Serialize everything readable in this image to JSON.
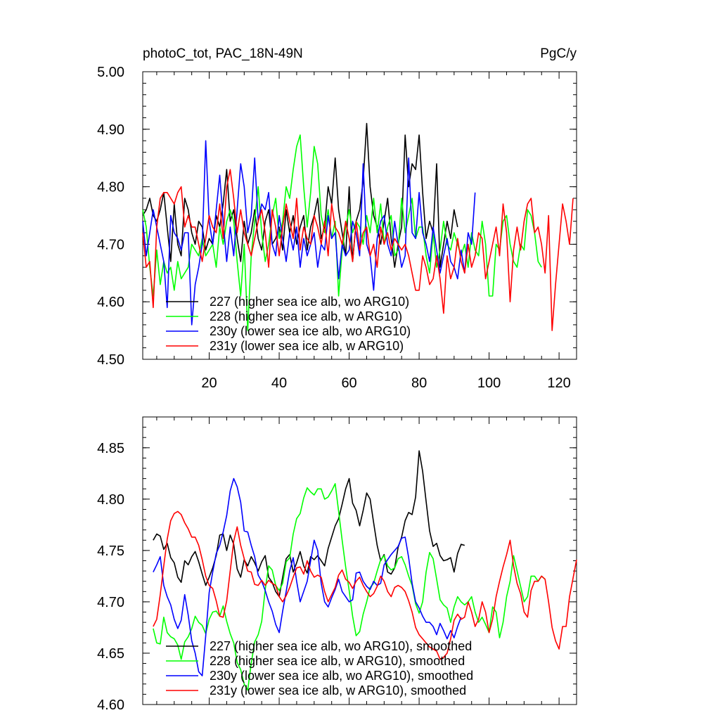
{
  "chart_data": [
    {
      "type": "line",
      "title_left": "photoC_tot, PAC_18N-49N",
      "title_right": "PgC/y",
      "xlabel": "",
      "ylabel": "",
      "xlim": [
        1,
        125
      ],
      "ylim": [
        4.5,
        5.0
      ],
      "xticks": [
        20,
        40,
        60,
        80,
        100,
        120
      ],
      "xtick_labels": [
        "20",
        "40",
        "60",
        "80",
        "100",
        "120"
      ],
      "yticks": [
        4.5,
        4.6,
        4.7,
        4.8,
        4.9,
        5.0
      ],
      "ytick_labels": [
        "4.50",
        "4.60",
        "4.70",
        "4.80",
        "4.90",
        "5.00"
      ],
      "legend_position": "bottom-left",
      "series": [
        {
          "name": "227 (higher sea ice alb, wo ARG10)",
          "color": "#000000",
          "x_start": 1,
          "values": [
            4.75,
            4.76,
            4.78,
            4.75,
            4.74,
            4.76,
            4.79,
            4.73,
            4.67,
            4.77,
            4.7,
            4.68,
            4.78,
            4.76,
            4.72,
            4.7,
            4.74,
            4.73,
            4.69,
            4.71,
            4.7,
            4.75,
            4.73,
            4.77,
            4.83,
            4.74,
            4.76,
            4.71,
            4.67,
            4.74,
            4.7,
            4.72,
            4.76,
            4.71,
            4.69,
            4.74,
            4.76,
            4.7,
            4.71,
            4.73,
            4.69,
            4.76,
            4.72,
            4.75,
            4.7,
            4.73,
            4.75,
            4.69,
            4.73,
            4.75,
            4.78,
            4.71,
            4.73,
            4.8,
            4.77,
            4.85,
            4.76,
            4.72,
            4.68,
            4.8,
            4.67,
            4.74,
            4.76,
            4.81,
            4.91,
            4.8,
            4.75,
            4.73,
            4.7,
            4.74,
            4.78,
            4.71,
            4.66,
            4.7,
            4.73,
            4.89,
            4.8,
            4.84,
            4.83,
            4.89,
            4.79,
            4.71,
            4.74,
            4.72,
            4.84,
            4.66,
            4.7,
            4.74,
            4.71,
            4.76,
            4.73
          ]
        },
        {
          "name": "228 (higher sea ice alb, w ARG10)",
          "color": "#00ff00",
          "x_start": 1,
          "values": [
            4.76,
            4.73,
            4.66,
            4.61,
            4.69,
            4.63,
            4.67,
            4.65,
            4.66,
            4.62,
            4.67,
            4.64,
            4.65,
            4.66,
            4.7,
            4.69,
            4.68,
            4.71,
            4.68,
            4.69,
            4.7,
            4.66,
            4.73,
            4.7,
            4.74,
            4.76,
            4.74,
            4.67,
            4.61,
            4.7,
            4.55,
            4.68,
            4.74,
            4.8,
            4.72,
            4.67,
            4.7,
            4.75,
            4.78,
            4.71,
            4.74,
            4.8,
            4.78,
            4.83,
            4.87,
            4.89,
            4.8,
            4.73,
            4.79,
            4.87,
            4.84,
            4.75,
            4.72,
            4.76,
            4.71,
            4.74,
            4.61,
            4.69,
            4.73,
            4.76,
            4.72,
            4.74,
            4.73,
            4.7,
            4.75,
            4.72,
            4.78,
            4.72,
            4.77,
            4.7,
            4.73,
            4.75,
            4.68,
            4.69,
            4.78,
            4.72,
            4.75,
            4.78,
            4.71,
            4.73,
            4.73,
            4.68,
            4.65,
            4.72,
            4.66,
            4.69,
            4.74,
            4.7,
            4.69,
            4.72,
            4.7,
            4.68,
            4.7,
            4.66,
            4.72,
            4.69,
            4.68,
            4.74,
            4.7,
            4.61,
            4.61,
            4.7,
            4.69,
            4.74,
            4.75,
            4.7,
            4.67,
            4.66,
            4.7,
            4.69,
            4.76,
            4.75,
            4.72,
            4.67,
            4.66
          ]
        },
        {
          "name": "230y (lower sea ice alb, wo ARG10)",
          "color": "#0000ff",
          "x_start": 1,
          "values": [
            4.74,
            4.68,
            4.72,
            4.76,
            4.73,
            4.7,
            4.67,
            4.59,
            4.75,
            4.72,
            4.71,
            4.69,
            4.72,
            4.72,
            4.56,
            4.63,
            4.66,
            4.7,
            4.88,
            4.74,
            4.7,
            4.76,
            4.82,
            4.74,
            4.67,
            4.73,
            4.68,
            4.76,
            4.84,
            4.8,
            4.72,
            4.75,
            4.85,
            4.74,
            4.77,
            4.76,
            4.79,
            4.7,
            4.68,
            4.75,
            4.71,
            4.67,
            4.72,
            4.69,
            4.73,
            4.66,
            4.71,
            4.68,
            4.7,
            4.72,
            4.66,
            4.7,
            4.69,
            4.75,
            4.71,
            4.72,
            4.64,
            4.7,
            4.68,
            4.69,
            4.74,
            4.72,
            4.68,
            4.84,
            4.7,
            4.68,
            4.62,
            4.71,
            4.74,
            4.75,
            4.7,
            4.68,
            4.74,
            4.7,
            4.66,
            4.68,
            4.85,
            4.72,
            4.71,
            4.79,
            4.72,
            4.7,
            4.67,
            4.73,
            4.69,
            4.65,
            4.68,
            4.71,
            4.67,
            4.66,
            4.64,
            4.69,
            4.65,
            4.72,
            4.7,
            4.79
          ]
        },
        {
          "name": "231y (lower sea ice alb, w ARG10)",
          "color": "#ff0000",
          "x_start": 1,
          "values": [
            4.72,
            4.66,
            4.67,
            4.59,
            4.73,
            4.78,
            4.79,
            4.79,
            4.78,
            4.77,
            4.79,
            4.8,
            4.73,
            4.75,
            4.73,
            4.73,
            4.7,
            4.67,
            4.71,
            4.75,
            4.73,
            4.72,
            4.77,
            4.71,
            4.8,
            4.83,
            4.78,
            4.72,
            4.76,
            4.72,
            4.7,
            4.68,
            4.71,
            4.74,
            4.76,
            4.72,
            4.66,
            4.76,
            4.73,
            4.68,
            4.73,
            4.77,
            4.74,
            4.71,
            4.78,
            4.69,
            4.73,
            4.71,
            4.7,
            4.75,
            4.73,
            4.7,
            4.74,
            4.68,
            4.77,
            4.73,
            4.72,
            4.7,
            4.74,
            4.71,
            4.67,
            4.74,
            4.69,
            4.72,
            4.73,
            4.68,
            4.7,
            4.66,
            4.73,
            4.7,
            4.72,
            4.69,
            4.71,
            4.7,
            4.69,
            4.7,
            4.68,
            4.65,
            4.62,
            4.62,
            4.68,
            4.66,
            4.63,
            4.64,
            4.68,
            4.64,
            4.58,
            4.68,
            4.64,
            4.66,
            4.71,
            4.67,
            4.65,
            4.7,
            4.66,
            4.68,
            4.72,
            4.71,
            4.64,
            4.67,
            4.7,
            4.73,
            4.68,
            4.77,
            4.72,
            4.6,
            4.69,
            4.73,
            4.69,
            4.74,
            4.77,
            4.78,
            4.72,
            4.73,
            4.7,
            4.65,
            4.75,
            4.55,
            4.63,
            4.7,
            4.77,
            4.74,
            4.7,
            4.78
          ]
        }
      ]
    },
    {
      "type": "line",
      "title_left": "",
      "title_right": "",
      "xlabel": "",
      "ylabel": "",
      "xlim": [
        1,
        125
      ],
      "ylim": [
        4.6,
        4.88
      ],
      "xticks": [
        20,
        40,
        60,
        80,
        100,
        120
      ],
      "yticks": [
        4.6,
        4.65,
        4.7,
        4.75,
        4.8,
        4.85
      ],
      "ytick_labels": [
        "4.60",
        "4.65",
        "4.70",
        "4.75",
        "4.80",
        "4.85"
      ],
      "legend_position": "bottom-left",
      "series": [
        {
          "name": "227 (higher sea ice alb, wo ARG10), smoothed",
          "color": "#000000",
          "x_start": 4,
          "values": [
            4.76,
            4.766,
            4.764,
            4.751,
            4.757,
            4.743,
            4.738,
            4.724,
            4.719,
            4.74,
            4.736,
            4.744,
            4.749,
            4.739,
            4.727,
            4.716,
            4.724,
            4.733,
            4.745,
            4.765,
            4.766,
            4.75,
            4.765,
            4.756,
            4.732,
            4.724,
            4.741,
            4.735,
            4.744,
            4.738,
            4.73,
            4.739,
            4.745,
            4.724,
            4.719,
            4.71,
            4.705,
            4.724,
            4.742,
            4.746,
            4.729,
            4.738,
            4.749,
            4.735,
            4.728,
            4.744,
            4.741,
            4.745,
            4.74,
            4.735,
            4.752,
            4.763,
            4.774,
            4.781,
            4.795,
            4.81,
            4.82,
            4.796,
            4.789,
            4.774,
            4.789,
            4.806,
            4.8,
            4.777,
            4.755,
            4.74,
            4.746,
            4.729,
            4.727,
            4.733,
            4.753,
            4.763,
            4.779,
            4.787,
            4.785,
            4.802,
            4.847,
            4.827,
            4.798,
            4.769,
            4.754,
            4.757,
            4.745,
            4.74,
            4.741,
            4.743,
            4.729,
            4.747,
            4.756,
            4.755
          ]
        },
        {
          "name": "228 (higher sea ice alb, w ARG10), smoothed",
          "color": "#00ff00",
          "x_start": 4,
          "values": [
            4.674,
            4.66,
            4.659,
            4.685,
            4.67,
            4.666,
            4.664,
            4.658,
            4.644,
            4.661,
            4.666,
            4.674,
            4.686,
            4.68,
            4.677,
            4.669,
            4.683,
            4.69,
            4.691,
            4.686,
            4.696,
            4.681,
            4.669,
            4.66,
            4.641,
            4.634,
            4.62,
            4.614,
            4.64,
            4.661,
            4.668,
            4.681,
            4.712,
            4.735,
            4.731,
            4.716,
            4.711,
            4.718,
            4.739,
            4.743,
            4.766,
            4.781,
            4.786,
            4.801,
            4.811,
            4.807,
            4.804,
            4.81,
            4.81,
            4.8,
            4.802,
            4.808,
            4.815,
            4.788,
            4.76,
            4.734,
            4.711,
            4.686,
            4.667,
            4.671,
            4.688,
            4.7,
            4.714,
            4.718,
            4.73,
            4.741,
            4.745,
            4.735,
            4.731,
            4.733,
            4.742,
            4.744,
            4.736,
            4.725,
            4.716,
            4.698,
            4.689,
            4.7,
            4.729,
            4.748,
            4.742,
            4.722,
            4.702,
            4.697,
            4.694,
            4.68,
            4.695,
            4.705,
            4.7,
            4.697,
            4.7,
            4.705,
            4.69,
            4.68,
            4.685,
            4.678,
            4.67,
            4.695,
            4.69,
            4.665,
            4.68,
            4.705,
            4.72,
            4.745,
            4.73,
            4.715,
            4.7,
            4.705,
            4.725,
            4.725,
            4.72,
            4.725,
            4.722
          ]
        },
        {
          "name": "230y (lower sea ice alb, wo ARG10), smoothed",
          "color": "#0000ff",
          "x_start": 4,
          "values": [
            4.729,
            4.736,
            4.744,
            4.716,
            4.705,
            4.697,
            4.683,
            4.674,
            4.682,
            4.707,
            4.687,
            4.662,
            4.65,
            4.632,
            4.628,
            4.667,
            4.709,
            4.729,
            4.747,
            4.755,
            4.768,
            4.784,
            4.808,
            4.82,
            4.812,
            4.797,
            4.769,
            4.768,
            4.755,
            4.744,
            4.726,
            4.72,
            4.711,
            4.7,
            4.691,
            4.678,
            4.67,
            4.691,
            4.71,
            4.73,
            4.743,
            4.72,
            4.7,
            4.71,
            4.72,
            4.74,
            4.76,
            4.75,
            4.718,
            4.7,
            4.695,
            4.704,
            4.712,
            4.722,
            4.71,
            4.705,
            4.7,
            4.702,
            4.728,
            4.729,
            4.72,
            4.715,
            4.712,
            4.72,
            4.716,
            4.718,
            4.736,
            4.741,
            4.746,
            4.75,
            4.754,
            4.762,
            4.763,
            4.743,
            4.718,
            4.7,
            4.694,
            4.686,
            4.68,
            4.68,
            4.676,
            4.668,
            4.679,
            4.672,
            4.664,
            4.672,
            4.665,
            4.676,
            4.685
          ]
        },
        {
          "name": "231y (lower sea ice alb, w ARG10), smoothed",
          "color": "#ff0000",
          "x_start": 4,
          "values": [
            4.676,
            4.683,
            4.707,
            4.735,
            4.761,
            4.779,
            4.786,
            4.788,
            4.785,
            4.777,
            4.771,
            4.763,
            4.763,
            4.755,
            4.741,
            4.725,
            4.716,
            4.713,
            4.701,
            4.686,
            4.685,
            4.701,
            4.73,
            4.759,
            4.773,
            4.755,
            4.742,
            4.73,
            4.729,
            4.717,
            4.716,
            4.721,
            4.716,
            4.721,
            4.718,
            4.716,
            4.705,
            4.7,
            4.706,
            4.714,
            4.724,
            4.733,
            4.734,
            4.727,
            4.74,
            4.73,
            4.724,
            4.726,
            4.724,
            4.71,
            4.7,
            4.707,
            4.714,
            4.726,
            4.731,
            4.722,
            4.719,
            4.713,
            4.72,
            4.724,
            4.716,
            4.71,
            4.705,
            4.708,
            4.715,
            4.725,
            4.72,
            4.71,
            4.705,
            4.714,
            4.716,
            4.714,
            4.71,
            4.701,
            4.69,
            4.675,
            4.668,
            4.664,
            4.66,
            4.656,
            4.654,
            4.652,
            4.644,
            4.646,
            4.65,
            4.664,
            4.682,
            4.688,
            4.683,
            4.685,
            4.7,
            4.69,
            4.676,
            4.683,
            4.7,
            4.69,
            4.67,
            4.683,
            4.705,
            4.72,
            4.734,
            4.746,
            4.76,
            4.735,
            4.718,
            4.708,
            4.69,
            4.685,
            4.711,
            4.72,
            4.72,
            4.725,
            4.722,
            4.7,
            4.675,
            4.662,
            4.654,
            4.676,
            4.676,
            4.705,
            4.723,
            4.741
          ]
        }
      ]
    }
  ]
}
